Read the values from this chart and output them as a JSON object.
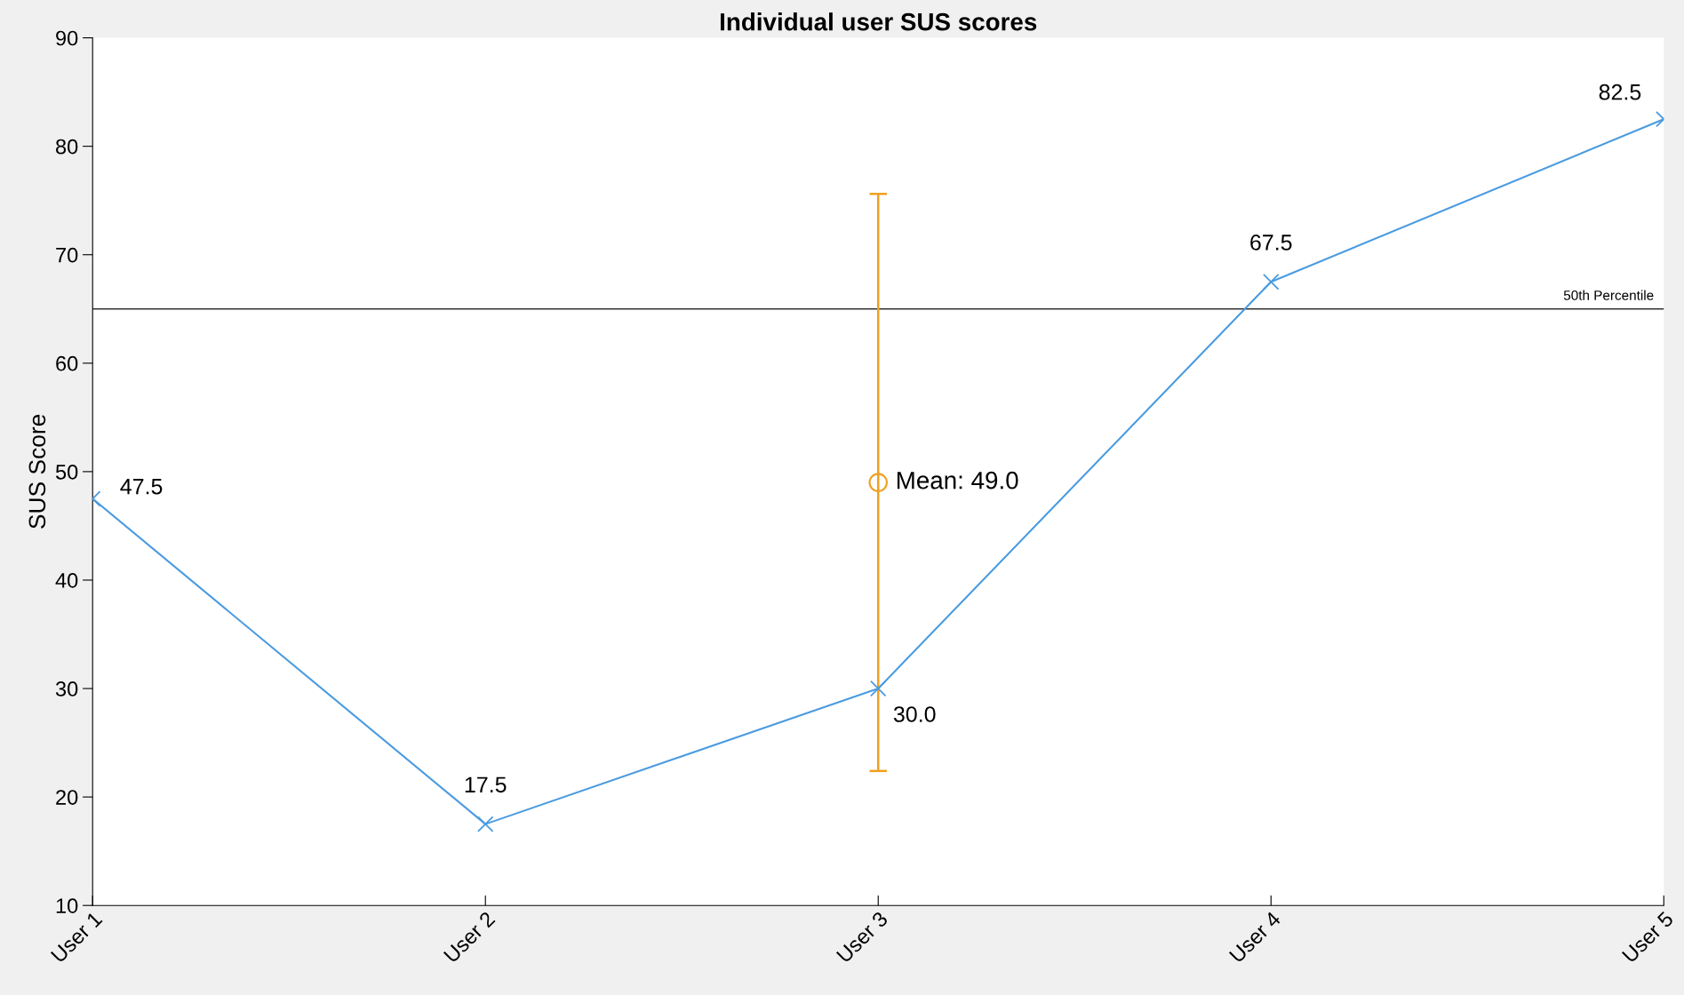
{
  "chart_data": {
    "type": "line",
    "title": "Individual user SUS scores",
    "ylabel": "SUS Score",
    "categories": [
      "User 1",
      "User 2",
      "User 3",
      "User 4",
      "User 5"
    ],
    "series": [
      {
        "color": "#4a9be0",
        "values": [
          47.5,
          17.5,
          30.0,
          67.5,
          82.5
        ],
        "marker": "cross",
        "value_labels": [
          "47.5",
          "17.5",
          "30.0",
          "67.5",
          "82.5"
        ]
      },
      {
        "type": "scatter",
        "x": [
          "User 3"
        ],
        "color": "#f0a020",
        "values": [
          49.0
        ],
        "errors": [
          26.6
        ],
        "marker": "circle",
        "value_labels": [
          "Mean: 49.0"
        ]
      }
    ],
    "ylim": [
      10,
      90
    ],
    "yticks": [
      10,
      20,
      30,
      40,
      50,
      60,
      70,
      80,
      90
    ],
    "ref_lines": [
      {
        "axis": "y",
        "value": 65,
        "label": "50th Percentile",
        "color": "#333333"
      }
    ]
  }
}
